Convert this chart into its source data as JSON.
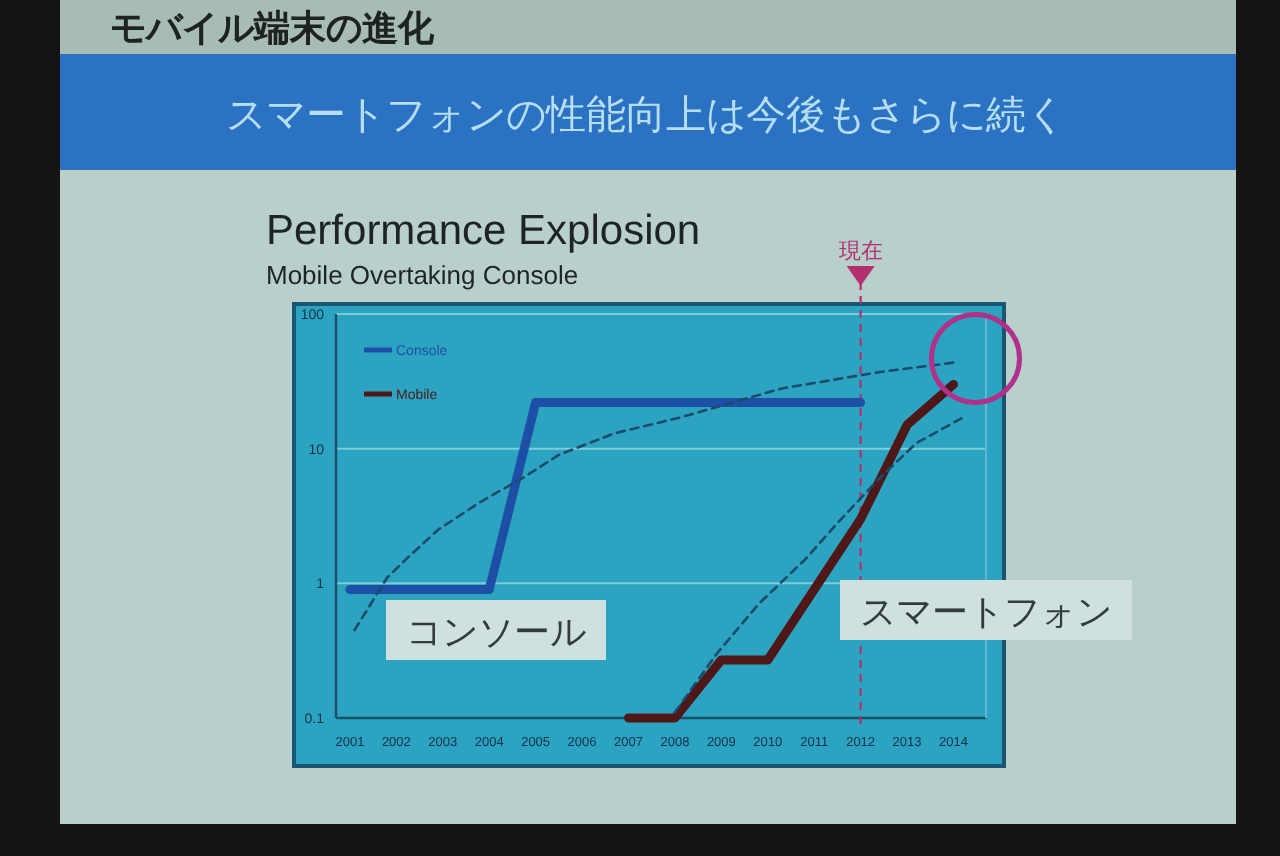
{
  "chart_data": {
    "type": "line",
    "title": "Performance Explosion",
    "subtitle": "Mobile Overtaking Console",
    "series": [
      {
        "name": "Console",
        "color": "#1e4fa6",
        "line_style": "solid",
        "x": [
          2001,
          2002,
          2003,
          2004,
          2005,
          2006,
          2007,
          2008,
          2009,
          2010,
          2011,
          2012
        ],
        "values": [
          0.9,
          0.9,
          0.9,
          0.9,
          22,
          22,
          22,
          22,
          22,
          22,
          22,
          22
        ]
      },
      {
        "name": "Mobile",
        "color": "#4e1818",
        "line_style": "solid",
        "x": [
          2007,
          2008,
          2009,
          2010,
          2011,
          2012,
          2013,
          2014
        ],
        "values": [
          0.1,
          0.1,
          0.27,
          0.27,
          0.9,
          3,
          15,
          30
        ]
      },
      {
        "color": "#1b4a6a",
        "line_style": "dashed",
        "x": [
          2001.1,
          2001.8,
          2002.2,
          2002.9,
          2003.8,
          2004.7,
          2005.5,
          2006.7,
          2008.1,
          2010.3,
          2012.4,
          2014.1
        ],
        "values": [
          0.45,
          1.1,
          1.5,
          2.5,
          4,
          6,
          9,
          13,
          17,
          28,
          37,
          44
        ]
      },
      {
        "color": "#1b4a6a",
        "line_style": "dashed",
        "x": [
          2008,
          2008.9,
          2009.8,
          2010.8,
          2011.5,
          2012.4,
          2013.2,
          2014.2
        ],
        "values": [
          0.11,
          0.3,
          0.7,
          1.5,
          2.8,
          6,
          11,
          17
        ]
      }
    ],
    "xlim": [
      2000.7,
      2014.7
    ],
    "xticks": [
      2001,
      2002,
      2003,
      2004,
      2005,
      2006,
      2007,
      2008,
      2009,
      2010,
      2011,
      2012,
      2013,
      2014
    ],
    "ylim": [
      0.1,
      100
    ],
    "yticks": [
      0.1,
      1,
      10,
      100
    ],
    "log": "y",
    "grid": "y",
    "legend": "top left",
    "ref_lines": [
      {
        "axis": "x",
        "value": 2012,
        "label": "現在",
        "color": "#b3306f",
        "line_style": "dashed"
      }
    ],
    "annotations": [
      "モバイル端末の進化",
      "スマートフォンの性能向上は今後もさらに続く",
      "コンソール",
      "スマートフォン"
    ]
  }
}
